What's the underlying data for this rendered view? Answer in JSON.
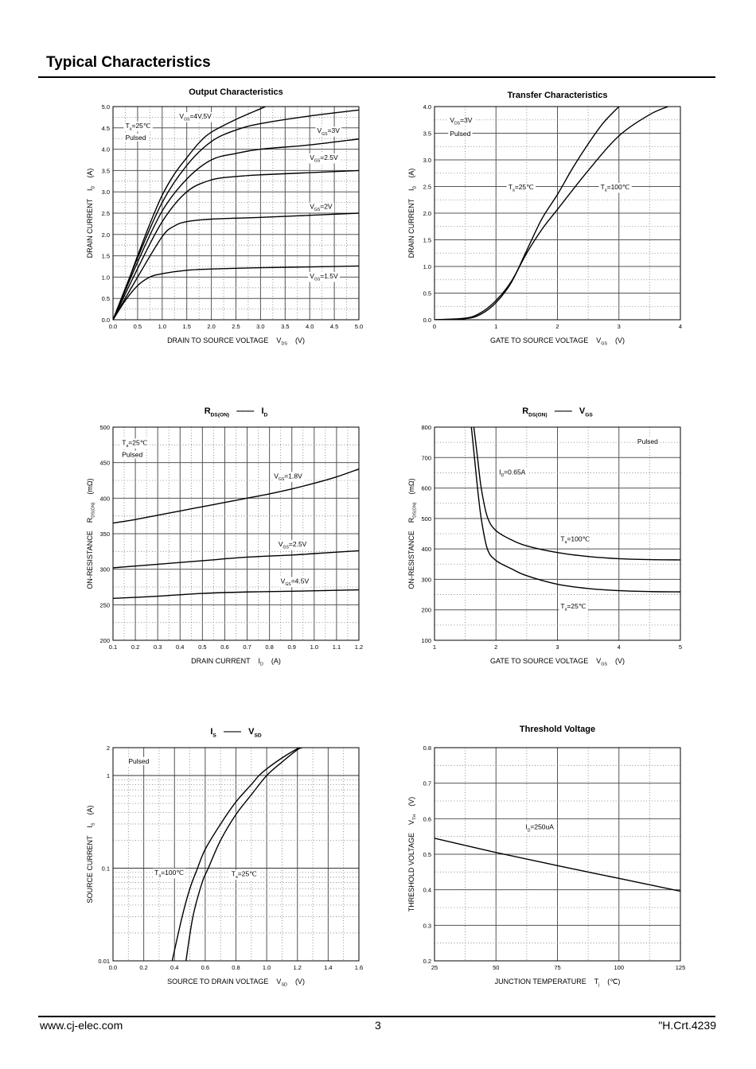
{
  "header": {
    "title": "Typical Characteristics"
  },
  "footer": {
    "website": "www.cj-elec.com",
    "page": "3",
    "code": "\"H.Crt.4239"
  },
  "chart_data": [
    {
      "type": "line",
      "title": [
        [
          "Output Characteristics",
          0
        ]
      ],
      "xlabel": [
        [
          "DRAIN TO SOURCE VOLTAGE    V",
          0
        ],
        [
          "DS",
          1
        ],
        [
          "    (V)",
          0
        ]
      ],
      "ylabel": [
        [
          "DRAIN CURRENT    I",
          0
        ],
        [
          "D",
          1
        ],
        [
          "    (A)",
          0
        ]
      ],
      "xlim": [
        0,
        5
      ],
      "ylim": [
        0,
        5
      ],
      "yscale": "linear",
      "xticks": [
        0,
        0.5,
        1,
        1.5,
        2,
        2.5,
        3,
        3.5,
        4,
        4.5,
        5
      ],
      "xtick_labels": [
        "0.0",
        "0.5",
        "1.0",
        "1.5",
        "2.0",
        "2.5",
        "3.0",
        "3.5",
        "4.0",
        "4.5",
        "5.0"
      ],
      "yticks": [
        0,
        0.5,
        1,
        1.5,
        2,
        2.5,
        3,
        3.5,
        4,
        4.5,
        5
      ],
      "ytick_labels": [
        "0.0",
        "0.5",
        "1.0",
        "1.5",
        "2.0",
        "2.5",
        "3.0",
        "3.5",
        "4.0",
        "4.5",
        "5.0"
      ],
      "xminor": 0.25,
      "yminor": 0.25,
      "grid": true,
      "annotations": [
        [
          [
            "T",
            0
          ],
          [
            "a",
            1
          ],
          [
            "=25℃",
            0
          ]
        ],
        [
          [
            "Pulsed",
            0
          ]
        ],
        [
          [
            "V",
            0
          ],
          [
            "GS",
            1
          ],
          [
            "=4V,5V",
            0
          ]
        ],
        [
          [
            "V",
            0
          ],
          [
            "GS",
            1
          ],
          [
            "=3V",
            0
          ]
        ],
        [
          [
            "V",
            0
          ],
          [
            "GS",
            1
          ],
          [
            "=2.5V",
            0
          ]
        ],
        [
          [
            "V",
            0
          ],
          [
            "GS",
            1
          ],
          [
            "=2V",
            0
          ]
        ],
        [
          [
            "V",
            0
          ],
          [
            "GS",
            1
          ],
          [
            "=1.5V",
            0
          ]
        ]
      ],
      "series": [
        {
          "name": "VGS=5V",
          "x": [
            0,
            0.25,
            0.5,
            0.75,
            1,
            1.25,
            1.5,
            1.75,
            2,
            2.5,
            3,
            3.1
          ],
          "y": [
            0,
            0.72,
            1.5,
            2.25,
            2.92,
            3.42,
            3.8,
            4.15,
            4.4,
            4.7,
            4.95,
            5.0
          ]
        },
        {
          "name": "VGS=4V",
          "x": [
            0,
            0.5,
            1,
            1.5,
            2,
            2.5,
            3,
            4,
            5
          ],
          "y": [
            0,
            1.45,
            2.75,
            3.62,
            4.18,
            4.45,
            4.6,
            4.78,
            4.92
          ]
        },
        {
          "name": "VGS=3V",
          "x": [
            0,
            0.5,
            1,
            1.5,
            2,
            2.5,
            3,
            4,
            5
          ],
          "y": [
            0,
            1.35,
            2.55,
            3.3,
            3.75,
            3.9,
            4.0,
            4.1,
            4.24
          ]
        },
        {
          "name": "VGS=2.5V",
          "x": [
            0,
            0.5,
            1,
            1.5,
            2,
            2.5,
            3,
            4,
            5
          ],
          "y": [
            0,
            1.2,
            2.3,
            3.0,
            3.28,
            3.36,
            3.4,
            3.45,
            3.5
          ]
        },
        {
          "name": "VGS=2V",
          "x": [
            0,
            0.5,
            1,
            1.25,
            1.5,
            2,
            3,
            4,
            5
          ],
          "y": [
            0,
            1.0,
            1.95,
            2.2,
            2.3,
            2.36,
            2.4,
            2.45,
            2.5
          ]
        },
        {
          "name": "VGS=1.5V",
          "x": [
            0,
            0.25,
            0.5,
            0.75,
            1,
            1.5,
            2,
            3,
            4,
            5
          ],
          "y": [
            0,
            0.45,
            0.8,
            1.0,
            1.08,
            1.16,
            1.19,
            1.22,
            1.24,
            1.26
          ]
        }
      ]
    },
    {
      "type": "line",
      "title": [
        [
          "Transfer Characteristics",
          0
        ]
      ],
      "xlabel": [
        [
          "GATE TO SOURCE VOLTAGE    V",
          0
        ],
        [
          "GS",
          1
        ],
        [
          "    (V)",
          0
        ]
      ],
      "ylabel": [
        [
          "DRAIN CURRENT    I",
          0
        ],
        [
          "D",
          1
        ],
        [
          "    (A)",
          0
        ]
      ],
      "xlim": [
        0,
        4
      ],
      "ylim": [
        0,
        4
      ],
      "yscale": "linear",
      "xticks": [
        0,
        1,
        2,
        3,
        4
      ],
      "xtick_labels": [
        "0",
        "1",
        "2",
        "3",
        "4"
      ],
      "yticks": [
        0,
        0.5,
        1,
        1.5,
        2,
        2.5,
        3,
        3.5,
        4
      ],
      "ytick_labels": [
        "0.0",
        "0.5",
        "1.0",
        "1.5",
        "2.0",
        "2.5",
        "3.0",
        "3.5",
        "4.0"
      ],
      "xminor": 0.5,
      "yminor": 0.25,
      "grid": true,
      "annotations": [
        [
          [
            "V",
            0
          ],
          [
            "DS",
            1
          ],
          [
            "=3V",
            0
          ]
        ],
        [
          [
            "Pulsed",
            0
          ]
        ],
        [
          [
            "T",
            0
          ],
          [
            "a",
            1
          ],
          [
            "=25℃",
            0
          ]
        ],
        [
          [
            "T",
            0
          ],
          [
            "a",
            1
          ],
          [
            "=100℃",
            0
          ]
        ]
      ],
      "series": [
        {
          "name": "Ta=25℃",
          "x": [
            0,
            0.5,
            0.75,
            1,
            1.25,
            1.5,
            1.75,
            2,
            2.25,
            2.5,
            2.75,
            3
          ],
          "y": [
            0,
            0.02,
            0.1,
            0.32,
            0.7,
            1.3,
            1.9,
            2.35,
            2.85,
            3.3,
            3.7,
            4.0
          ]
        },
        {
          "name": "Ta=100℃",
          "x": [
            0,
            0.5,
            0.75,
            1,
            1.25,
            1.5,
            1.75,
            2,
            2.5,
            3,
            3.5,
            3.8
          ],
          "y": [
            0,
            0.03,
            0.13,
            0.36,
            0.72,
            1.25,
            1.7,
            2.07,
            2.8,
            3.45,
            3.85,
            4.0
          ]
        }
      ]
    },
    {
      "type": "line",
      "title": [
        [
          "R",
          0
        ],
        [
          "DS(ON)",
          1
        ],
        [
          "   ——   I",
          0
        ],
        [
          "D",
          1
        ]
      ],
      "xlabel": [
        [
          "DRAIN CURRENT    I",
          0
        ],
        [
          "D",
          1
        ],
        [
          "    (A)",
          0
        ]
      ],
      "ylabel": [
        [
          "ON-RESISTANCE    R",
          0
        ],
        [
          "DS(ON)",
          1
        ],
        [
          "    (mΩ)",
          0
        ]
      ],
      "xlim": [
        0.1,
        1.2
      ],
      "ylim": [
        200,
        500
      ],
      "yscale": "linear",
      "xticks": [
        0.1,
        0.2,
        0.3,
        0.4,
        0.5,
        0.6,
        0.7,
        0.8,
        0.9,
        1.0,
        1.1,
        1.2
      ],
      "xtick_labels": [
        "0.1",
        "0.2",
        "0.3",
        "0.4",
        "0.5",
        "0.6",
        "0.7",
        "0.8",
        "0.9",
        "1.0",
        "1.1",
        "1.2"
      ],
      "yticks": [
        200,
        250,
        300,
        350,
        400,
        450,
        500
      ],
      "ytick_labels": [
        "200",
        "250",
        "300",
        "350",
        "400",
        "450",
        "500"
      ],
      "xminor": 0.05,
      "yminor": 25,
      "grid": true,
      "annotations": [
        [
          [
            "T",
            0
          ],
          [
            "a",
            1
          ],
          [
            "=25℃",
            0
          ]
        ],
        [
          [
            "Pulsed",
            0
          ]
        ],
        [
          [
            "V",
            0
          ],
          [
            "GS",
            1
          ],
          [
            "=1.8V",
            0
          ]
        ],
        [
          [
            "V",
            0
          ],
          [
            "GS",
            1
          ],
          [
            "=2.5V",
            0
          ]
        ],
        [
          [
            "V",
            0
          ],
          [
            "GS",
            1
          ],
          [
            "=4.5V",
            0
          ]
        ]
      ],
      "series": [
        {
          "name": "VGS=1.8V",
          "x": [
            0.1,
            0.2,
            0.3,
            0.4,
            0.5,
            0.6,
            0.7,
            0.8,
            0.9,
            1.0,
            1.1,
            1.2
          ],
          "y": [
            365,
            370,
            376,
            382,
            388,
            394,
            400,
            406,
            413,
            421,
            430,
            441
          ]
        },
        {
          "name": "VGS=2.5V",
          "x": [
            0.1,
            0.3,
            0.5,
            0.7,
            0.9,
            1.0,
            1.2
          ],
          "y": [
            302,
            307,
            312,
            317,
            320,
            322,
            326
          ]
        },
        {
          "name": "VGS=4.5V",
          "x": [
            0.1,
            0.3,
            0.5,
            0.7,
            0.9,
            1.2
          ],
          "y": [
            259,
            262,
            266,
            268,
            269,
            271
          ]
        }
      ]
    },
    {
      "type": "line",
      "title": [
        [
          "R",
          0
        ],
        [
          "DS(ON)",
          1
        ],
        [
          "   ——   V",
          0
        ],
        [
          "GS",
          1
        ]
      ],
      "xlabel": [
        [
          "GATE TO SOURCE VOLTAGE    V",
          0
        ],
        [
          "GS",
          1
        ],
        [
          "    (V)",
          0
        ]
      ],
      "ylabel": [
        [
          "ON-RESISTANCE    R",
          0
        ],
        [
          "DS(ON)",
          1
        ],
        [
          "    (mΩ)",
          0
        ]
      ],
      "xlim": [
        1,
        5
      ],
      "ylim": [
        100,
        800
      ],
      "yscale": "linear",
      "xticks": [
        1,
        2,
        3,
        4,
        5
      ],
      "xtick_labels": [
        "1",
        "2",
        "3",
        "4",
        "5"
      ],
      "yticks": [
        100,
        200,
        300,
        400,
        500,
        600,
        700,
        800
      ],
      "ytick_labels": [
        "100",
        "200",
        "300",
        "400",
        "500",
        "600",
        "700",
        "800"
      ],
      "xminor": 0.5,
      "yminor": 50,
      "grid": true,
      "annotations": [
        [
          [
            "Pulsed",
            0
          ]
        ],
        [
          [
            "I",
            0
          ],
          [
            "D",
            1
          ],
          [
            "=0.65A",
            0
          ]
        ],
        [
          [
            "T",
            0
          ],
          [
            "a",
            1
          ],
          [
            "=100℃",
            0
          ]
        ],
        [
          [
            "T",
            0
          ],
          [
            "a",
            1
          ],
          [
            "=25℃",
            0
          ]
        ]
      ],
      "series": [
        {
          "name": "Ta=100℃",
          "x": [
            1.64,
            1.7,
            1.76,
            1.86,
            2,
            2.25,
            2.5,
            3,
            3.5,
            4,
            4.5,
            5
          ],
          "y": [
            800,
            700,
            600,
            505,
            460,
            430,
            410,
            388,
            375,
            368,
            365,
            364
          ]
        },
        {
          "name": "Ta=25℃",
          "x": [
            1.6,
            1.65,
            1.7,
            1.76,
            1.86,
            2,
            2.25,
            2.5,
            3,
            3.5,
            4,
            4.5,
            5
          ],
          "y": [
            800,
            700,
            600,
            500,
            400,
            362,
            335,
            312,
            284,
            270,
            263,
            260,
            259
          ]
        }
      ]
    },
    {
      "type": "line",
      "title": [
        [
          "I",
          0
        ],
        [
          "S",
          1
        ],
        [
          "   ——   V",
          0
        ],
        [
          "SD",
          1
        ]
      ],
      "xlabel": [
        [
          "SOURCE TO DRAIN VOLTAGE    V",
          0
        ],
        [
          "SD",
          1
        ],
        [
          "    (V)",
          0
        ]
      ],
      "ylabel": [
        [
          "SOURCE CURRENT    I",
          0
        ],
        [
          "S",
          1
        ],
        [
          "    (A)",
          0
        ]
      ],
      "xlim": [
        0,
        1.6
      ],
      "ylim": [
        0.01,
        2
      ],
      "yscale": "log",
      "xticks": [
        0,
        0.2,
        0.4,
        0.6,
        0.8,
        1.0,
        1.2,
        1.4,
        1.6
      ],
      "xtick_labels": [
        "0.0",
        "0.2",
        "0.4",
        "0.6",
        "0.8",
        "1.0",
        "1.2",
        "1.4",
        "1.6"
      ],
      "yticks": [
        0.01,
        0.1,
        1,
        2
      ],
      "ytick_labels": [
        "0.01",
        "0.1",
        "1",
        "2"
      ],
      "xminor": 0.1,
      "grid": true,
      "annotations": [
        [
          [
            "Pulsed",
            0
          ]
        ],
        [
          [
            "T",
            0
          ],
          [
            "a",
            1
          ],
          [
            "=100℃",
            0
          ]
        ],
        [
          [
            "T",
            0
          ],
          [
            "a",
            1
          ],
          [
            "=25℃",
            0
          ]
        ]
      ],
      "series": [
        {
          "name": "Ta=100℃",
          "x": [
            0.385,
            0.45,
            0.5,
            0.55,
            0.6,
            0.7,
            0.8,
            0.9,
            0.95,
            1.0,
            1.1,
            1.2,
            1.22
          ],
          "y": [
            0.01,
            0.03,
            0.06,
            0.1,
            0.16,
            0.3,
            0.52,
            0.8,
            1.0,
            1.18,
            1.55,
            1.95,
            2
          ]
        },
        {
          "name": "Ta=25℃",
          "x": [
            0.475,
            0.52,
            0.58,
            0.62,
            0.7,
            0.8,
            0.9,
            1.0,
            1.1,
            1.2,
            1.23
          ],
          "y": [
            0.01,
            0.03,
            0.07,
            0.1,
            0.2,
            0.38,
            0.62,
            1.0,
            1.4,
            1.9,
            2
          ]
        }
      ]
    },
    {
      "type": "line",
      "title": [
        [
          "Threshold Voltage",
          0
        ]
      ],
      "xlabel": [
        [
          "JUNCTION TEMPERATURE    T",
          0
        ],
        [
          "j",
          1
        ],
        [
          "    (℃)",
          0
        ]
      ],
      "ylabel": [
        [
          "THRESHOLD VOLTAGE    V",
          0
        ],
        [
          "TH",
          1
        ],
        [
          "    (V)",
          0
        ]
      ],
      "xlim": [
        25,
        125
      ],
      "ylim": [
        0.2,
        0.8
      ],
      "yscale": "linear",
      "xticks": [
        25,
        50,
        75,
        100,
        125
      ],
      "xtick_labels": [
        "25",
        "50",
        "75",
        "100",
        "125"
      ],
      "yticks": [
        0.2,
        0.3,
        0.4,
        0.5,
        0.6,
        0.7,
        0.8
      ],
      "ytick_labels": [
        "0.2",
        "0.3",
        "0.4",
        "0.5",
        "0.6",
        "0.7",
        "0.8"
      ],
      "xminor": 12.5,
      "yminor": 0.05,
      "grid": true,
      "annotations": [
        [
          [
            "I",
            0
          ],
          [
            "D",
            1
          ],
          [
            "=250uA",
            0
          ]
        ]
      ],
      "series": [
        {
          "name": "ID=250uA",
          "x": [
            25,
            50,
            75,
            100,
            125
          ],
          "y": [
            0.545,
            0.505,
            0.468,
            0.432,
            0.396
          ]
        }
      ]
    }
  ]
}
